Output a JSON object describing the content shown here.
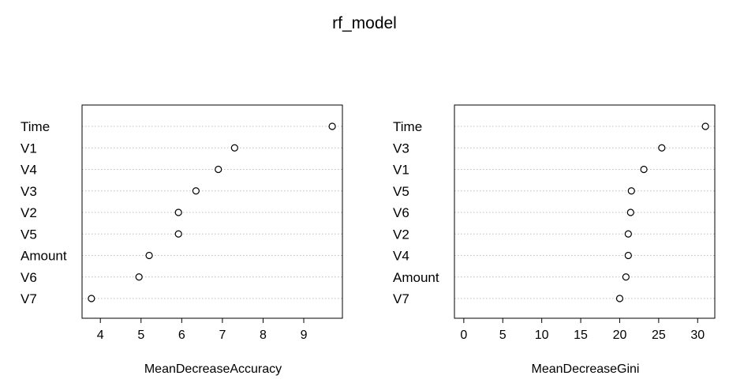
{
  "title": "rf_model",
  "chart_data": [
    {
      "type": "scatter",
      "xlabel": "MeanDecreaseAccuracy",
      "xlim": [
        3.55,
        9.95
      ],
      "xticks": [
        4,
        5,
        6,
        7,
        8,
        9
      ],
      "grid": "horizontal dotted",
      "categories": [
        "Time",
        "V1",
        "V4",
        "V3",
        "V2",
        "V5",
        "Amount",
        "V6",
        "V7"
      ],
      "values": [
        9.7,
        7.3,
        6.9,
        6.35,
        5.92,
        5.92,
        5.2,
        4.95,
        3.78
      ]
    },
    {
      "type": "scatter",
      "xlabel": "MeanDecreaseGini",
      "xlim": [
        -1.2,
        32.2
      ],
      "xticks": [
        0,
        5,
        10,
        15,
        20,
        25,
        30
      ],
      "grid": "horizontal dotted",
      "categories": [
        "Time",
        "V3",
        "V1",
        "V5",
        "V6",
        "V2",
        "V4",
        "Amount",
        "V7"
      ],
      "values": [
        31.0,
        25.4,
        23.1,
        21.5,
        21.4,
        21.1,
        21.1,
        20.8,
        20.0
      ]
    }
  ]
}
